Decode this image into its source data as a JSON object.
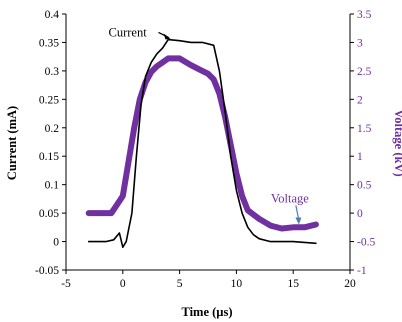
{
  "chart_data": {
    "type": "line",
    "title": "",
    "xlabel": "Time (µs)",
    "ylabel_left": "Current (mA)",
    "ylabel_right": "Voltage (kV)",
    "xlim": [
      -5,
      20
    ],
    "ylim_left": [
      -0.05,
      0.4
    ],
    "ylim_right": [
      -1,
      3.5
    ],
    "x_ticks": [
      "-5",
      "0",
      "5",
      "10",
      "15",
      "20"
    ],
    "y_left_ticks": [
      "-0.05",
      "0",
      "0.05",
      "0.1",
      "0.15",
      "0.2",
      "0.25",
      "0.3",
      "0.35",
      "0.4"
    ],
    "y_right_ticks": [
      "-1",
      "-0.5",
      "0",
      "0.5",
      "1",
      "1.5",
      "2",
      "2.5",
      "3",
      "3.5"
    ],
    "grid": false,
    "legend": "none",
    "colors": {
      "current": "#000000",
      "voltage": "#7030a0"
    },
    "annotations": [
      {
        "text": "Current",
        "series": "current",
        "point_x": 4.2,
        "point_y": 0.357
      },
      {
        "text": "Voltage",
        "series": "voltage",
        "point_x": 15.5,
        "point_y": -0.2
      }
    ],
    "series": [
      {
        "axis": "left",
        "x": [
          -3,
          -1.5,
          -0.8,
          -0.3,
          0,
          0.3,
          0.8,
          1.2,
          1.6,
          2,
          2.5,
          3,
          3.5,
          4,
          5,
          6,
          7,
          8,
          8.5,
          9,
          9.5,
          10,
          10.5,
          11,
          11.5,
          12,
          13,
          15,
          17
        ],
        "y": [
          0,
          0,
          0.003,
          0.015,
          -0.01,
          0,
          0.05,
          0.15,
          0.24,
          0.29,
          0.315,
          0.33,
          0.34,
          0.355,
          0.353,
          0.35,
          0.35,
          0.345,
          0.3,
          0.23,
          0.15,
          0.09,
          0.05,
          0.025,
          0.012,
          0.005,
          0,
          0,
          -0.003
        ]
      },
      {
        "axis": "right",
        "x": [
          -3,
          -1,
          0,
          0.5,
          1,
          1.5,
          2,
          2.5,
          3,
          3.5,
          4,
          5,
          6,
          7,
          7.5,
          8,
          8.5,
          9,
          9.5,
          10,
          10.5,
          11,
          12,
          13,
          14,
          15,
          16,
          17
        ],
        "y": [
          0,
          0,
          0.3,
          0.9,
          1.5,
          2,
          2.3,
          2.48,
          2.58,
          2.65,
          2.72,
          2.72,
          2.6,
          2.5,
          2.45,
          2.35,
          2.1,
          1.7,
          1.2,
          0.7,
          0.3,
          0.05,
          -0.1,
          -0.22,
          -0.27,
          -0.25,
          -0.25,
          -0.2
        ]
      }
    ]
  }
}
